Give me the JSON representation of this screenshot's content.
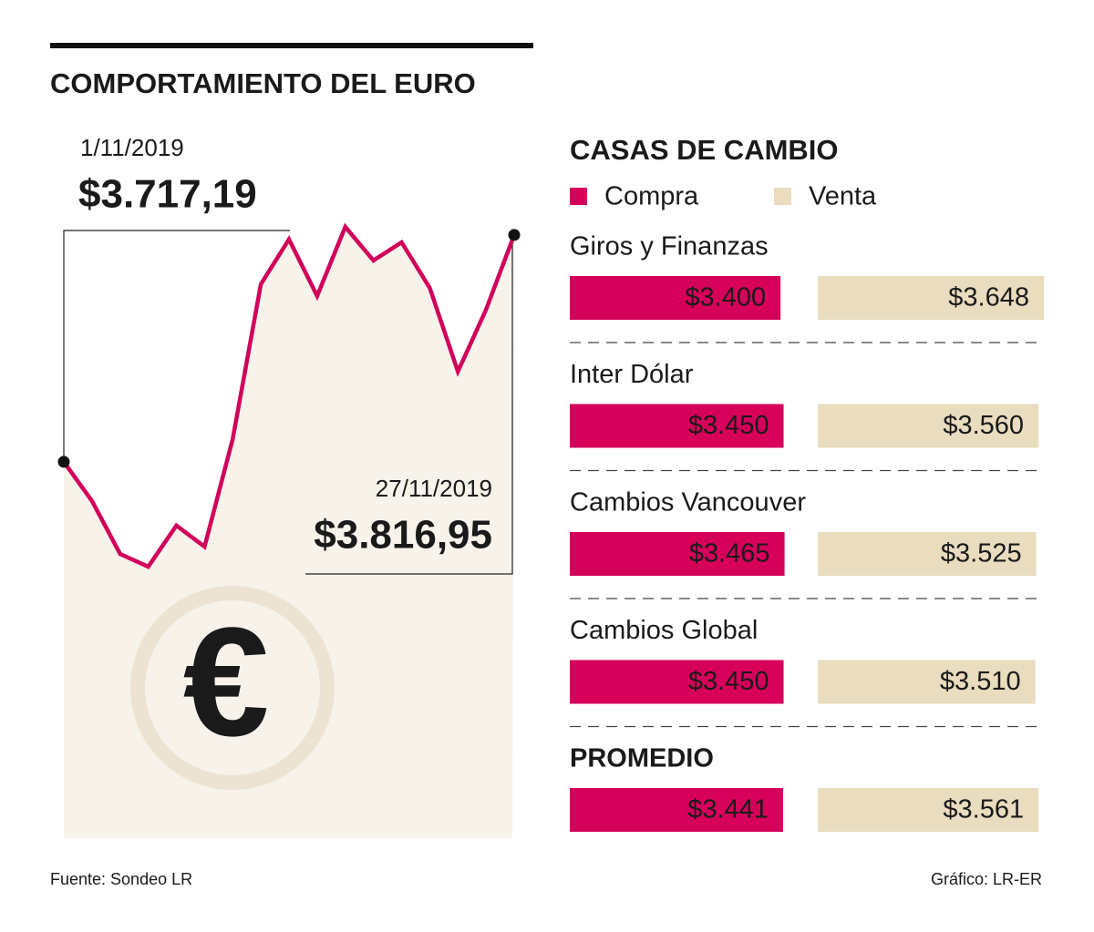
{
  "title": "COMPORTAMIENTO DEL EURO",
  "source": "Fuente: Sondeo LR",
  "credit": "Gráfico: LR-ER",
  "chart_data": [
    {
      "type": "line",
      "categories": [
        "1/11/2019",
        null,
        null,
        null,
        null,
        null,
        null,
        null,
        null,
        null,
        null,
        null,
        null,
        null,
        null,
        null,
        "27/11/2019"
      ],
      "values": [
        3717.19,
        3700,
        3676.7,
        3671.1,
        3689.2,
        3679.9,
        3727.2,
        3795.3,
        3815,
        3790.1,
        3820.5,
        3805.7,
        3813.7,
        3793.7,
        3756.9,
        3784.1,
        3816.95
      ],
      "value_labels": [
        "$3.717,19",
        null,
        null,
        null,
        null,
        null,
        null,
        null,
        null,
        null,
        null,
        null,
        null,
        null,
        null,
        null,
        "$3.816,95"
      ],
      "color": "#d1005a",
      "fill": "#f7f2ea"
    },
    {
      "type": "hbar",
      "title": "CASAS DE CAMBIO",
      "categories": [
        "Giros y Finanzas",
        "Inter Dólar",
        "Cambios Vancouver",
        "Cambios Global",
        "PROMEDIO"
      ],
      "series": [
        {
          "name": "Compra",
          "color": "#d6005a",
          "values": [
            3400,
            3450,
            3465,
            3450,
            3441
          ],
          "value_labels": [
            "$3.400",
            "$3.450",
            "$3.465",
            "$3.450",
            "$3.441"
          ]
        },
        {
          "name": "Venta",
          "color": "#e9dcbf",
          "values": [
            3648,
            3560,
            3525,
            3510,
            3561
          ],
          "value_labels": [
            "$3.648",
            "$3.560",
            "$3.525",
            "$3.510",
            "$3.561"
          ]
        }
      ]
    }
  ]
}
